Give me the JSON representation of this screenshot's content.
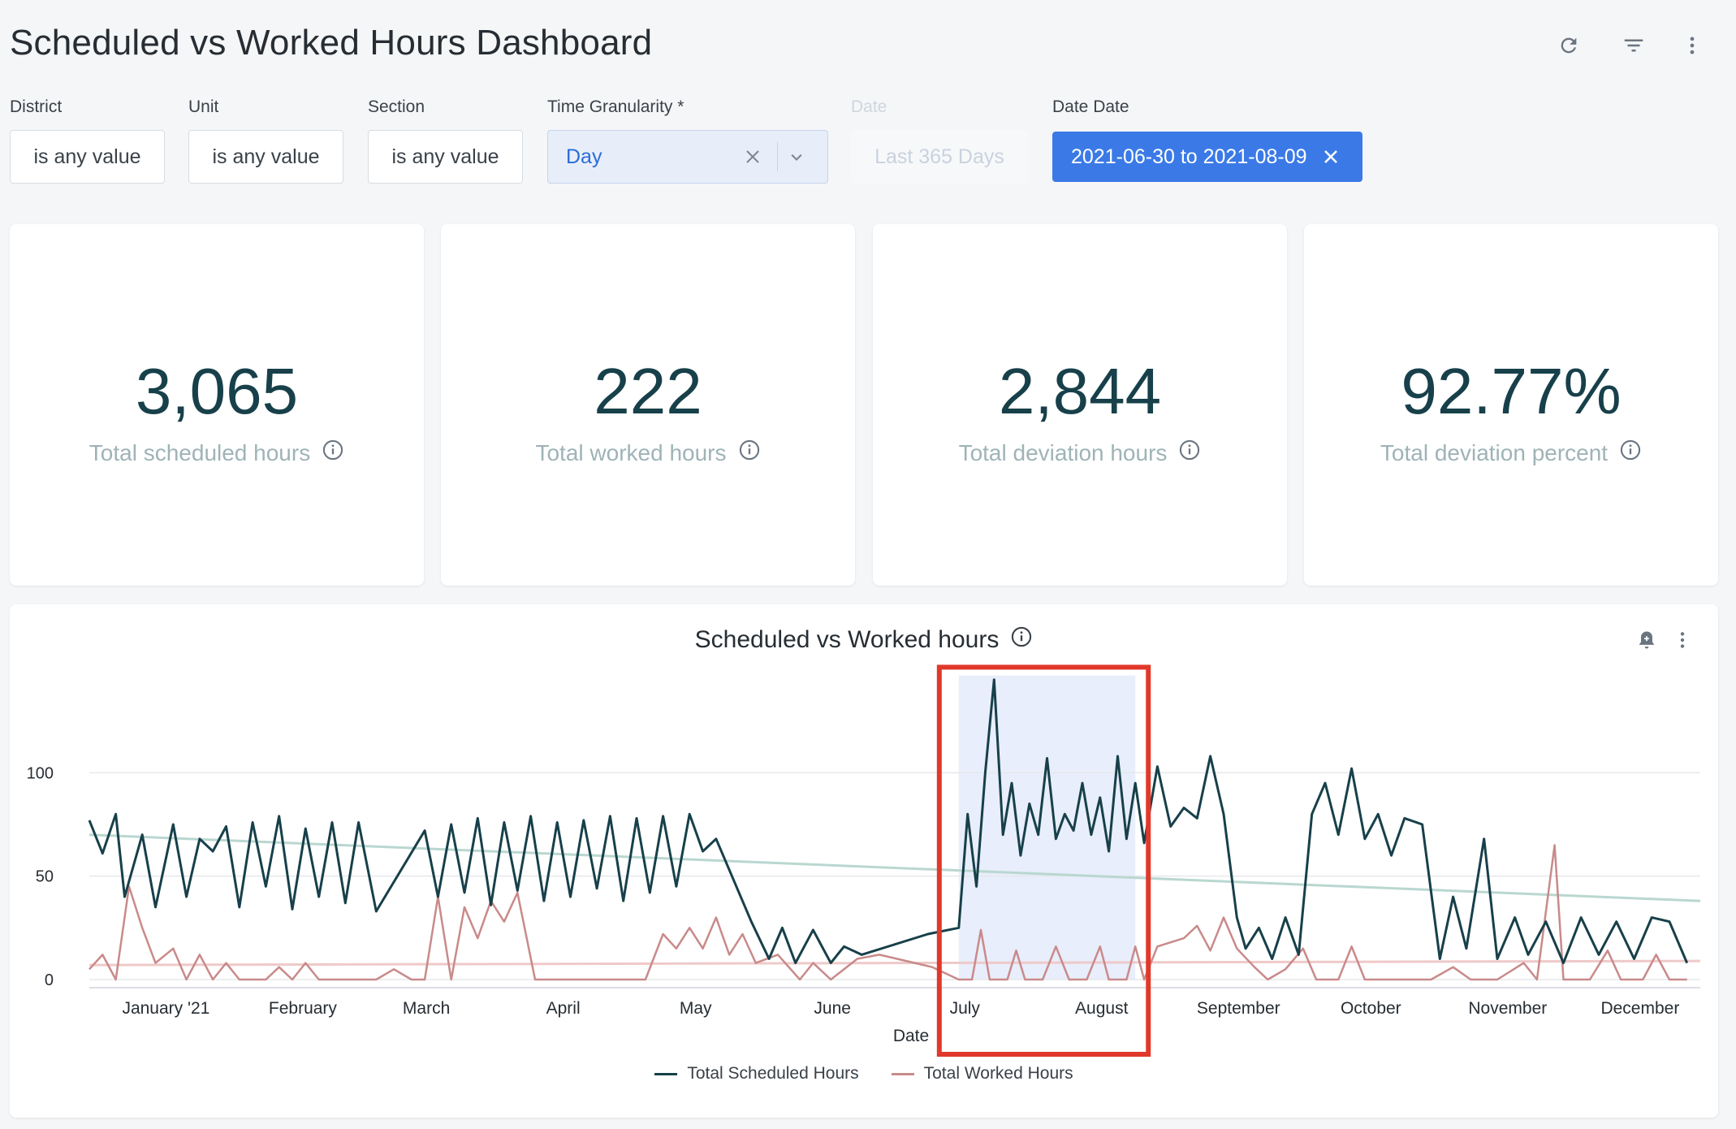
{
  "title": "Scheduled vs Worked Hours Dashboard",
  "header_icons": [
    "refresh-icon",
    "filter-icon",
    "more-vert-icon"
  ],
  "filters": {
    "district": {
      "label": "District",
      "value": "is any value"
    },
    "unit": {
      "label": "Unit",
      "value": "is any value"
    },
    "section": {
      "label": "Section",
      "value": "is any value"
    },
    "time_granularity": {
      "label": "Time Granularity *",
      "value": "Day"
    },
    "date": {
      "label": "Date",
      "value": "Last 365 Days"
    },
    "date_date": {
      "label": "Date Date",
      "value": "2021-06-30 to 2021-08-09"
    }
  },
  "kpis": [
    {
      "value": "3,065",
      "label": "Total scheduled hours"
    },
    {
      "value": "222",
      "label": "Total worked hours"
    },
    {
      "value": "2,844",
      "label": "Total deviation hours"
    },
    {
      "value": "92.77%",
      "label": "Total deviation percent"
    }
  ],
  "chart": {
    "title": "Scheduled vs Worked hours",
    "legend": [
      {
        "name": "Total Scheduled Hours",
        "color": "#17404a"
      },
      {
        "name": "Total Worked Hours",
        "color": "#c98a8a"
      }
    ]
  },
  "colors": {
    "accent": "#3b7ae6",
    "scheduled": "#17404a",
    "worked": "#c98a8a",
    "scheduled_trend": "#b9d7d0",
    "worked_trend": "#efc9c9",
    "highlight_band": "#e8eefb",
    "annotation_box": "#e0392b"
  },
  "chart_data": {
    "type": "line",
    "xlabel": "Date",
    "ylabel": "",
    "ylim": [
      0,
      150
    ],
    "yticks": [
      0,
      50,
      100
    ],
    "xtick_labels": [
      "January '21",
      "February",
      "March",
      "April",
      "May",
      "June",
      "July",
      "August",
      "September",
      "October",
      "November",
      "December"
    ],
    "x_range": [
      "2020-12-15",
      "2021-12-15"
    ],
    "highlight_range": [
      "2021-06-30",
      "2021-08-09"
    ],
    "series": [
      {
        "name": "Total Scheduled Hours",
        "points": [
          [
            "2020-12-15",
            77
          ],
          [
            "2020-12-18",
            61
          ],
          [
            "2020-12-21",
            80
          ],
          [
            "2020-12-23",
            40
          ],
          [
            "2020-12-27",
            70
          ],
          [
            "2020-12-30",
            35
          ],
          [
            "2021-01-03",
            75
          ],
          [
            "2021-01-06",
            40
          ],
          [
            "2021-01-09",
            68
          ],
          [
            "2021-01-12",
            62
          ],
          [
            "2021-01-15",
            74
          ],
          [
            "2021-01-18",
            35
          ],
          [
            "2021-01-21",
            76
          ],
          [
            "2021-01-24",
            45
          ],
          [
            "2021-01-27",
            79
          ],
          [
            "2021-01-30",
            34
          ],
          [
            "2021-02-02",
            73
          ],
          [
            "2021-02-05",
            40
          ],
          [
            "2021-02-08",
            76
          ],
          [
            "2021-02-11",
            37
          ],
          [
            "2021-02-14",
            76
          ],
          [
            "2021-02-18",
            33
          ],
          [
            "2021-03-01",
            72
          ],
          [
            "2021-03-04",
            40
          ],
          [
            "2021-03-07",
            75
          ],
          [
            "2021-03-10",
            42
          ],
          [
            "2021-03-13",
            78
          ],
          [
            "2021-03-16",
            36
          ],
          [
            "2021-03-19",
            76
          ],
          [
            "2021-03-22",
            43
          ],
          [
            "2021-03-25",
            79
          ],
          [
            "2021-03-28",
            38
          ],
          [
            "2021-03-31",
            76
          ],
          [
            "2021-04-03",
            40
          ],
          [
            "2021-04-06",
            77
          ],
          [
            "2021-04-09",
            44
          ],
          [
            "2021-04-12",
            79
          ],
          [
            "2021-04-15",
            38
          ],
          [
            "2021-04-18",
            78
          ],
          [
            "2021-04-21",
            42
          ],
          [
            "2021-04-24",
            79
          ],
          [
            "2021-04-27",
            45
          ],
          [
            "2021-04-30",
            80
          ],
          [
            "2021-05-03",
            62
          ],
          [
            "2021-05-06",
            68
          ],
          [
            "2021-05-14",
            28
          ],
          [
            "2021-05-18",
            10
          ],
          [
            "2021-05-21",
            25
          ],
          [
            "2021-05-24",
            8
          ],
          [
            "2021-05-28",
            24
          ],
          [
            "2021-06-01",
            8
          ],
          [
            "2021-06-04",
            16
          ],
          [
            "2021-06-08",
            12
          ],
          [
            "2021-06-23",
            22
          ],
          [
            "2021-06-30",
            25
          ],
          [
            "2021-07-02",
            80
          ],
          [
            "2021-07-04",
            45
          ],
          [
            "2021-07-06",
            100
          ],
          [
            "2021-07-08",
            145
          ],
          [
            "2021-07-10",
            70
          ],
          [
            "2021-07-12",
            95
          ],
          [
            "2021-07-14",
            60
          ],
          [
            "2021-07-16",
            85
          ],
          [
            "2021-07-18",
            70
          ],
          [
            "2021-07-20",
            107
          ],
          [
            "2021-07-22",
            68
          ],
          [
            "2021-07-24",
            80
          ],
          [
            "2021-07-26",
            72
          ],
          [
            "2021-07-28",
            95
          ],
          [
            "2021-07-30",
            70
          ],
          [
            "2021-08-01",
            88
          ],
          [
            "2021-08-03",
            62
          ],
          [
            "2021-08-05",
            108
          ],
          [
            "2021-08-07",
            68
          ],
          [
            "2021-08-09",
            95
          ],
          [
            "2021-08-11",
            66
          ],
          [
            "2021-08-14",
            103
          ],
          [
            "2021-08-17",
            74
          ],
          [
            "2021-08-20",
            83
          ],
          [
            "2021-08-23",
            78
          ],
          [
            "2021-08-26",
            108
          ],
          [
            "2021-08-29",
            80
          ],
          [
            "2021-09-01",
            30
          ],
          [
            "2021-09-03",
            15
          ],
          [
            "2021-09-06",
            25
          ],
          [
            "2021-09-09",
            10
          ],
          [
            "2021-09-12",
            30
          ],
          [
            "2021-09-15",
            12
          ],
          [
            "2021-09-18",
            80
          ],
          [
            "2021-09-21",
            95
          ],
          [
            "2021-09-24",
            70
          ],
          [
            "2021-09-27",
            102
          ],
          [
            "2021-09-30",
            68
          ],
          [
            "2021-10-03",
            80
          ],
          [
            "2021-10-06",
            60
          ],
          [
            "2021-10-09",
            78
          ],
          [
            "2021-10-13",
            75
          ],
          [
            "2021-10-17",
            10
          ],
          [
            "2021-10-20",
            40
          ],
          [
            "2021-10-23",
            15
          ],
          [
            "2021-10-27",
            68
          ],
          [
            "2021-10-30",
            10
          ],
          [
            "2021-11-03",
            30
          ],
          [
            "2021-11-06",
            12
          ],
          [
            "2021-11-10",
            28
          ],
          [
            "2021-11-14",
            8
          ],
          [
            "2021-11-18",
            30
          ],
          [
            "2021-11-22",
            12
          ],
          [
            "2021-11-26",
            28
          ],
          [
            "2021-11-30",
            10
          ],
          [
            "2021-12-04",
            30
          ],
          [
            "2021-12-08",
            28
          ],
          [
            "2021-12-12",
            8
          ]
        ]
      },
      {
        "name": "Total Worked Hours",
        "points": [
          [
            "2020-12-15",
            5
          ],
          [
            "2020-12-18",
            12
          ],
          [
            "2020-12-21",
            0
          ],
          [
            "2020-12-24",
            45
          ],
          [
            "2020-12-27",
            25
          ],
          [
            "2020-12-30",
            8
          ],
          [
            "2021-01-03",
            15
          ],
          [
            "2021-01-06",
            0
          ],
          [
            "2021-01-09",
            12
          ],
          [
            "2021-01-12",
            0
          ],
          [
            "2021-01-15",
            8
          ],
          [
            "2021-01-18",
            0
          ],
          [
            "2021-01-24",
            0
          ],
          [
            "2021-01-27",
            6
          ],
          [
            "2021-01-30",
            0
          ],
          [
            "2021-02-02",
            8
          ],
          [
            "2021-02-05",
            0
          ],
          [
            "2021-02-18",
            0
          ],
          [
            "2021-02-22",
            5
          ],
          [
            "2021-02-26",
            0
          ],
          [
            "2021-03-01",
            0
          ],
          [
            "2021-03-04",
            40
          ],
          [
            "2021-03-07",
            0
          ],
          [
            "2021-03-10",
            35
          ],
          [
            "2021-03-13",
            20
          ],
          [
            "2021-03-16",
            38
          ],
          [
            "2021-03-19",
            28
          ],
          [
            "2021-03-22",
            42
          ],
          [
            "2021-03-26",
            0
          ],
          [
            "2021-04-20",
            0
          ],
          [
            "2021-04-24",
            22
          ],
          [
            "2021-04-27",
            15
          ],
          [
            "2021-04-30",
            25
          ],
          [
            "2021-05-03",
            15
          ],
          [
            "2021-05-06",
            30
          ],
          [
            "2021-05-09",
            12
          ],
          [
            "2021-05-12",
            22
          ],
          [
            "2021-05-15",
            8
          ],
          [
            "2021-05-20",
            12
          ],
          [
            "2021-05-25",
            0
          ],
          [
            "2021-05-28",
            8
          ],
          [
            "2021-06-01",
            0
          ],
          [
            "2021-06-07",
            10
          ],
          [
            "2021-06-12",
            12
          ],
          [
            "2021-06-24",
            6
          ],
          [
            "2021-06-30",
            0
          ],
          [
            "2021-07-03",
            0
          ],
          [
            "2021-07-05",
            24
          ],
          [
            "2021-07-07",
            0
          ],
          [
            "2021-07-11",
            0
          ],
          [
            "2021-07-13",
            14
          ],
          [
            "2021-07-15",
            0
          ],
          [
            "2021-07-19",
            0
          ],
          [
            "2021-07-22",
            16
          ],
          [
            "2021-07-25",
            0
          ],
          [
            "2021-07-29",
            0
          ],
          [
            "2021-08-01",
            16
          ],
          [
            "2021-08-03",
            0
          ],
          [
            "2021-08-07",
            0
          ],
          [
            "2021-08-09",
            16
          ],
          [
            "2021-08-11",
            0
          ],
          [
            "2021-08-14",
            16
          ],
          [
            "2021-08-17",
            18
          ],
          [
            "2021-08-20",
            20
          ],
          [
            "2021-08-23",
            26
          ],
          [
            "2021-08-26",
            14
          ],
          [
            "2021-08-29",
            30
          ],
          [
            "2021-09-01",
            15
          ],
          [
            "2021-09-05",
            6
          ],
          [
            "2021-09-08",
            0
          ],
          [
            "2021-09-12",
            5
          ],
          [
            "2021-09-16",
            15
          ],
          [
            "2021-09-19",
            0
          ],
          [
            "2021-09-24",
            0
          ],
          [
            "2021-09-27",
            16
          ],
          [
            "2021-09-30",
            0
          ],
          [
            "2021-10-15",
            0
          ],
          [
            "2021-10-20",
            6
          ],
          [
            "2021-10-24",
            0
          ],
          [
            "2021-10-30",
            0
          ],
          [
            "2021-11-05",
            8
          ],
          [
            "2021-11-08",
            0
          ],
          [
            "2021-11-12",
            65
          ],
          [
            "2021-11-14",
            0
          ],
          [
            "2021-11-20",
            0
          ],
          [
            "2021-11-24",
            14
          ],
          [
            "2021-11-27",
            0
          ],
          [
            "2021-12-02",
            0
          ],
          [
            "2021-12-05",
            12
          ],
          [
            "2021-12-08",
            0
          ],
          [
            "2021-12-12",
            0
          ]
        ]
      }
    ],
    "trendlines": [
      {
        "series": "Total Scheduled Hours",
        "start": [
          "2020-12-15",
          70
        ],
        "end": [
          "2021-12-15",
          38
        ]
      },
      {
        "series": "Total Worked Hours",
        "start": [
          "2020-12-15",
          7
        ],
        "end": [
          "2021-12-15",
          9
        ]
      }
    ]
  }
}
